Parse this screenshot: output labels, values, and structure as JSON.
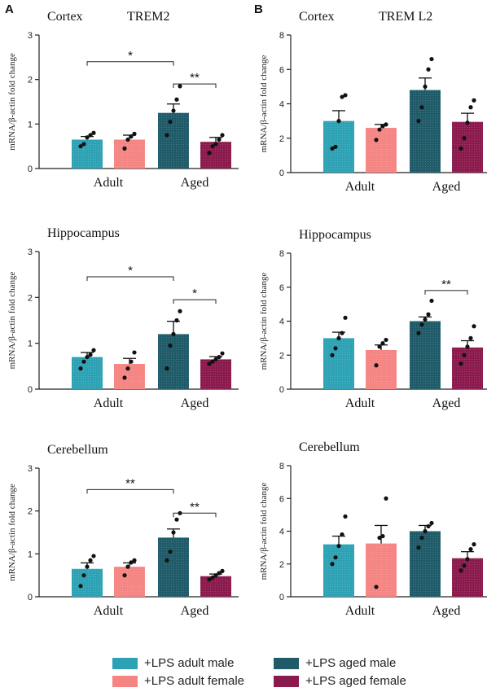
{
  "panel_letters": [
    "A",
    "B"
  ],
  "group_labels": [
    "Adult",
    "Aged"
  ],
  "ylabel": "mRNA/β-actin  fold  change",
  "legend": [
    {
      "label": "+LPS adult male",
      "color": "#2ea2b5"
    },
    {
      "label": "+LPS adult female",
      "color": "#f58583"
    },
    {
      "label": "+LPS aged male",
      "color": "#1f5b68"
    },
    {
      "label": "+LPS aged female",
      "color": "#8b1a4d"
    }
  ],
  "chart_data": [
    {
      "type": "bar",
      "panel": "A",
      "title": "Cortex",
      "gene": "TREM2",
      "ylabel": "mRNA/β-actin  fold  change",
      "ylim": [
        0,
        3
      ],
      "yticks": [
        0,
        1,
        2,
        3
      ],
      "groups": [
        "Adult",
        "Aged"
      ],
      "series": [
        {
          "name": "+LPS adult male",
          "mean": 0.65,
          "sem": 0.07,
          "points": [
            0.5,
            0.55,
            0.7,
            0.75,
            0.8
          ]
        },
        {
          "name": "+LPS adult female",
          "mean": 0.65,
          "sem": 0.1,
          "points": [
            0.45,
            0.65,
            0.72,
            0.78
          ]
        },
        {
          "name": "+LPS aged male",
          "mean": 1.25,
          "sem": 0.2,
          "points": [
            0.75,
            1.05,
            1.3,
            1.55,
            1.85
          ]
        },
        {
          "name": "+LPS aged female",
          "mean": 0.6,
          "sem": 0.1,
          "points": [
            0.35,
            0.5,
            0.55,
            0.65,
            0.75
          ]
        }
      ],
      "significance": [
        {
          "from": 0,
          "to": 2,
          "label": "*",
          "y": 2.4
        },
        {
          "from": 2,
          "to": 3,
          "label": "**",
          "y": 1.9
        }
      ]
    },
    {
      "type": "bar",
      "panel": "B",
      "title": "Cortex",
      "gene": "TREM L2",
      "ylabel": "mRNA/β-actin  fold  change",
      "ylim": [
        0,
        8
      ],
      "yticks": [
        0,
        2,
        4,
        6,
        8
      ],
      "groups": [
        "Adult",
        "Aged"
      ],
      "series": [
        {
          "name": "+LPS adult male",
          "mean": 3.0,
          "sem": 0.6,
          "points": [
            1.4,
            1.5,
            3.0,
            4.4,
            4.5
          ]
        },
        {
          "name": "+LPS adult female",
          "mean": 2.6,
          "sem": 0.2,
          "points": [
            1.9,
            2.5,
            2.7,
            2.8
          ]
        },
        {
          "name": "+LPS aged male",
          "mean": 4.8,
          "sem": 0.7,
          "points": [
            3.0,
            3.8,
            5.0,
            6.0,
            6.6
          ]
        },
        {
          "name": "+LPS aged female",
          "mean": 2.95,
          "sem": 0.5,
          "points": [
            1.4,
            2.0,
            2.9,
            3.8,
            4.2
          ]
        }
      ],
      "significance": []
    },
    {
      "type": "bar",
      "panel": "A",
      "title": "Hippocampus",
      "gene": "",
      "ylabel": "mRNA/β-actin  fold  change",
      "ylim": [
        0,
        3
      ],
      "yticks": [
        0,
        1,
        2,
        3
      ],
      "groups": [
        "Adult",
        "Aged"
      ],
      "series": [
        {
          "name": "+LPS adult male",
          "mean": 0.7,
          "sem": 0.1,
          "points": [
            0.45,
            0.6,
            0.7,
            0.75,
            0.85
          ]
        },
        {
          "name": "+LPS adult female",
          "mean": 0.55,
          "sem": 0.12,
          "points": [
            0.25,
            0.45,
            0.6,
            0.8
          ]
        },
        {
          "name": "+LPS aged male",
          "mean": 1.2,
          "sem": 0.28,
          "points": [
            0.45,
            0.95,
            1.2,
            1.5,
            1.7
          ]
        },
        {
          "name": "+LPS aged female",
          "mean": 0.65,
          "sem": 0.06,
          "points": [
            0.55,
            0.6,
            0.65,
            0.7,
            0.78
          ]
        }
      ],
      "significance": [
        {
          "from": 0,
          "to": 2,
          "label": "*",
          "y": 2.45
        },
        {
          "from": 2,
          "to": 3,
          "label": "*",
          "y": 1.95
        }
      ]
    },
    {
      "type": "bar",
      "panel": "B",
      "title": "Hippocampus",
      "gene": "",
      "ylabel": "mRNA/β-actin  fold  change",
      "ylim": [
        0,
        8
      ],
      "yticks": [
        0,
        2,
        4,
        6,
        8
      ],
      "groups": [
        "Adult",
        "Aged"
      ],
      "series": [
        {
          "name": "+LPS adult male",
          "mean": 3.0,
          "sem": 0.35,
          "points": [
            2.0,
            2.4,
            3.0,
            3.3,
            4.2
          ]
        },
        {
          "name": "+LPS adult female",
          "mean": 2.3,
          "sem": 0.3,
          "points": [
            1.4,
            2.5,
            2.7,
            2.9
          ]
        },
        {
          "name": "+LPS aged male",
          "mean": 4.0,
          "sem": 0.25,
          "points": [
            3.3,
            3.8,
            4.1,
            4.4,
            5.2
          ]
        },
        {
          "name": "+LPS aged female",
          "mean": 2.45,
          "sem": 0.4,
          "points": [
            1.5,
            2.0,
            2.5,
            3.0,
            3.7
          ]
        }
      ],
      "significance": [
        {
          "from": 2,
          "to": 3,
          "label": "**",
          "y": 5.8
        }
      ]
    },
    {
      "type": "bar",
      "panel": "A",
      "title": "Cerebellum",
      "gene": "",
      "ylabel": "mRNA/β-actin  fold  change",
      "ylim": [
        0,
        3
      ],
      "yticks": [
        0,
        1,
        2,
        3
      ],
      "groups": [
        "Adult",
        "Aged"
      ],
      "series": [
        {
          "name": "+LPS adult male",
          "mean": 0.65,
          "sem": 0.14,
          "points": [
            0.25,
            0.5,
            0.7,
            0.85,
            0.95
          ]
        },
        {
          "name": "+LPS adult female",
          "mean": 0.7,
          "sem": 0.09,
          "points": [
            0.5,
            0.7,
            0.8,
            0.85
          ]
        },
        {
          "name": "+LPS aged male",
          "mean": 1.38,
          "sem": 0.2,
          "points": [
            0.85,
            1.05,
            1.5,
            1.8,
            1.95
          ]
        },
        {
          "name": "+LPS aged female",
          "mean": 0.48,
          "sem": 0.05,
          "points": [
            0.4,
            0.45,
            0.5,
            0.55,
            0.6
          ]
        }
      ],
      "significance": [
        {
          "from": 0,
          "to": 2,
          "label": "**",
          "y": 2.5
        },
        {
          "from": 2,
          "to": 3,
          "label": "**",
          "y": 1.95
        }
      ]
    },
    {
      "type": "bar",
      "panel": "B",
      "title": "Cerebellum",
      "gene": "",
      "ylabel": "mRNA/β-actin  fold  change",
      "ylim": [
        0,
        8
      ],
      "yticks": [
        0,
        2,
        4,
        6,
        8
      ],
      "groups": [
        "Adult",
        "Aged"
      ],
      "series": [
        {
          "name": "+LPS adult male",
          "mean": 3.2,
          "sem": 0.5,
          "points": [
            2.0,
            2.4,
            3.1,
            3.8,
            4.9
          ]
        },
        {
          "name": "+LPS adult female",
          "mean": 3.25,
          "sem": 1.1,
          "points": [
            0.6,
            3.6,
            3.7,
            6.0
          ]
        },
        {
          "name": "+LPS aged male",
          "mean": 4.0,
          "sem": 0.35,
          "points": [
            3.0,
            3.6,
            4.0,
            4.3,
            4.5
          ]
        },
        {
          "name": "+LPS aged female",
          "mean": 2.35,
          "sem": 0.4,
          "points": [
            1.6,
            1.9,
            2.3,
            2.9,
            3.2
          ]
        }
      ],
      "significance": []
    }
  ]
}
